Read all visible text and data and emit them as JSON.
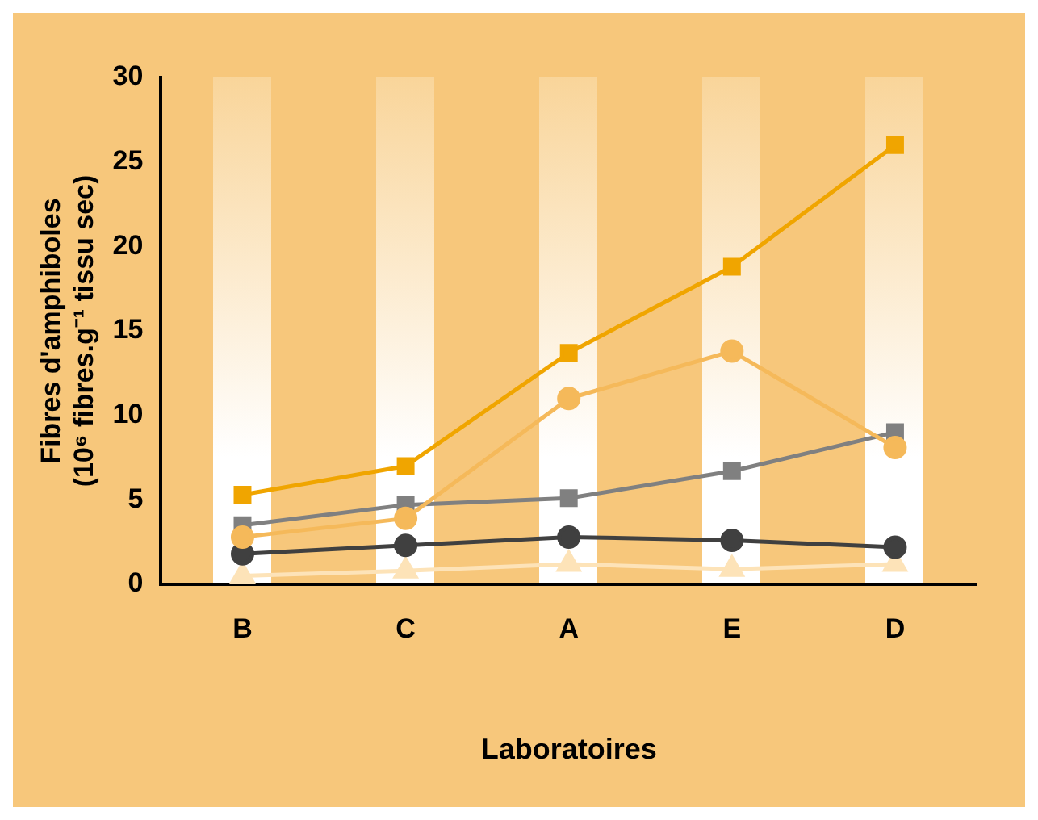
{
  "chart_data": {
    "type": "line",
    "xlabel": "Laboratoires",
    "ylabel": "Fibres d'amphiboles\n(10⁶ fibres.g⁻¹ tissu sec)",
    "categories": [
      "B",
      "C",
      "A",
      "E",
      "D"
    ],
    "series": [
      {
        "color": "#f0a500",
        "marker": "square",
        "values": [
          5.3,
          7.0,
          13.7,
          18.8,
          26.0
        ]
      },
      {
        "color": "#f5b95a",
        "marker": "circle",
        "values": [
          2.8,
          3.9,
          11.0,
          13.8,
          8.1
        ]
      },
      {
        "color": "#808080",
        "marker": "square",
        "values": [
          3.5,
          4.7,
          5.1,
          6.7,
          9.0
        ]
      },
      {
        "color": "#404040",
        "marker": "circle",
        "values": [
          1.8,
          2.3,
          2.8,
          2.6,
          2.2
        ]
      },
      {
        "color": "#fde3b8",
        "marker": "triangle",
        "values": [
          0.5,
          0.8,
          1.2,
          0.9,
          1.2
        ]
      }
    ],
    "ylim": [
      0,
      30
    ],
    "yticks": [
      0,
      5,
      10,
      15,
      20,
      25,
      30
    ],
    "grid": false,
    "legend": false
  }
}
